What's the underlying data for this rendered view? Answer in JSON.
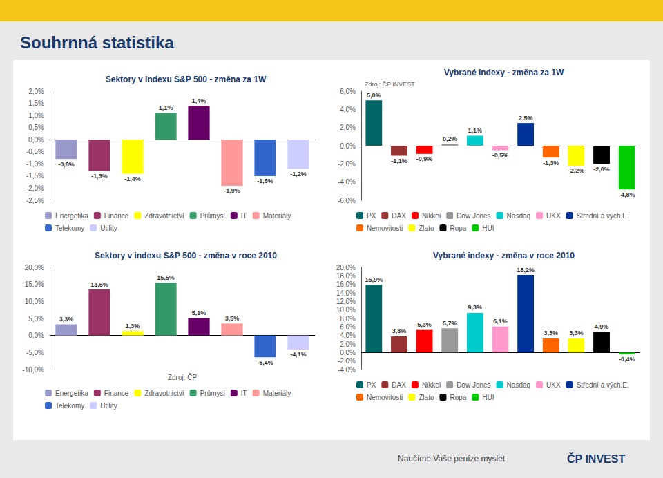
{
  "title": "Souhrnná statistika",
  "annotations": [
    "Naučíme Vaše peníze myslet",
    "ČP INVEST"
  ],
  "chart_data": [
    {
      "type": "bar",
      "title": "Sektory v indexu S&P 500 - změna za 1W",
      "categories": [
        "Energetika",
        "Finance",
        "Zdravotnictví",
        "Průmysl",
        "IT",
        "Materiály",
        "Telekomy",
        "Utility"
      ],
      "values": [
        -0.8,
        -1.3,
        -1.4,
        1.1,
        1.4,
        -1.9,
        -1.5,
        -1.2
      ],
      "value_labels": [
        "-0,8%",
        "-1,3%",
        "-1,4%",
        "1,1%",
        "1,4%",
        "-1,9%",
        "-1,5%",
        "-1,2%"
      ],
      "colors": [
        "#9999cc",
        "#993366",
        "#ffff00",
        "#339966",
        "#660066",
        "#ff9999",
        "#3366cc",
        "#ccccff"
      ],
      "ylim": [
        -2.5,
        2.0
      ],
      "yticks": [
        {
          "value": -2.5,
          "label": "-2,5%"
        },
        {
          "value": -2.0,
          "label": "-2,0%"
        },
        {
          "value": -1.5,
          "label": "-1,5%"
        },
        {
          "value": -1.0,
          "label": "-1,0%"
        },
        {
          "value": -0.5,
          "label": "-0,5%"
        },
        {
          "value": 0.0,
          "label": "0,0%"
        },
        {
          "value": 0.5,
          "label": "0,5%"
        },
        {
          "value": 1.0,
          "label": "1,0%"
        },
        {
          "value": 1.5,
          "label": "1,5%"
        },
        {
          "value": 2.0,
          "label": "2,0%"
        }
      ],
      "grid": false,
      "legend": "bottom",
      "data_labels": true,
      "tick_labels": "y"
    },
    {
      "type": "bar",
      "title": "Vybrané indexy - změna za 1W",
      "subtitle": "Zdroj: ČP INVEST",
      "categories": [
        "PX",
        "DAX",
        "Nikkei",
        "Dow Jones",
        "Nasdaq",
        "UKX",
        "Střední a vých.E.",
        "Nemovitosti",
        "Zlato",
        "Ropa",
        "HUI"
      ],
      "values": [
        5.0,
        -1.1,
        -0.9,
        0.2,
        1.1,
        -0.5,
        2.5,
        -1.3,
        -2.2,
        -2.0,
        -4.8
      ],
      "value_labels": [
        "5,0%",
        "-1,1%",
        "-0,9%",
        "0,2%",
        "1,1%",
        "-0,5%",
        "2,5%",
        "-1,3%",
        "-2,2%",
        "-2,0%",
        "-4,8%"
      ],
      "colors": [
        "#006666",
        "#993333",
        "#ff0000",
        "#999999",
        "#00cccc",
        "#ff99cc",
        "#003399",
        "#ff6600",
        "#ffff00",
        "#000000",
        "#00cc00"
      ],
      "ylim": [
        -6.0,
        6.0
      ],
      "yticks": [
        {
          "value": -6.0,
          "label": "-6,0%"
        },
        {
          "value": -4.0,
          "label": "-4,0%"
        },
        {
          "value": -2.0,
          "label": "-2,0%"
        },
        {
          "value": 0.0,
          "label": "0,0%"
        },
        {
          "value": 2.0,
          "label": "2,0%"
        },
        {
          "value": 4.0,
          "label": "4,0%"
        },
        {
          "value": 6.0,
          "label": "6,0%"
        }
      ],
      "grid": false,
      "legend": "bottom",
      "data_labels": true,
      "tick_labels": "y"
    },
    {
      "type": "bar",
      "title": "Sektory v indexu S&P 500 - změna v roce 2010",
      "xlabel": "Zdroj: ČP",
      "categories": [
        "Energetika",
        "Finance",
        "Zdravotnictví",
        "Průmysl",
        "IT",
        "Materiály",
        "Telekomy",
        "Utility"
      ],
      "values": [
        3.3,
        13.5,
        1.3,
        15.5,
        5.1,
        3.5,
        -6.4,
        -4.1
      ],
      "value_labels": [
        "3,3%",
        "13,5%",
        "1,3%",
        "15,5%",
        "5,1%",
        "3,5%",
        "-6,4%",
        "-4,1%"
      ],
      "colors": [
        "#9999cc",
        "#993366",
        "#ffff00",
        "#339966",
        "#660066",
        "#ff9999",
        "#3366cc",
        "#ccccff"
      ],
      "ylim": [
        -10.0,
        20.0
      ],
      "yticks": [
        {
          "value": -10.0,
          "label": "-10,0%"
        },
        {
          "value": -5.0,
          "label": "-5,0%"
        },
        {
          "value": 0.0,
          "label": "0,0%"
        },
        {
          "value": 5.0,
          "label": "5,0%"
        },
        {
          "value": 10.0,
          "label": "10,0%"
        },
        {
          "value": 15.0,
          "label": "15,0%"
        },
        {
          "value": 20.0,
          "label": "20,0%"
        }
      ],
      "grid": false,
      "legend": "bottom",
      "data_labels": true,
      "tick_labels": "y"
    },
    {
      "type": "bar",
      "title": "Vybrané indexy - změna v roce 2010",
      "categories": [
        "PX",
        "DAX",
        "Nikkei",
        "Dow Jones",
        "Nasdaq",
        "UKX",
        "Střední a vých.E.",
        "Nemovitosti",
        "Zlato",
        "Ropa",
        "HUI"
      ],
      "values": [
        15.9,
        3.8,
        5.3,
        5.7,
        9.3,
        6.1,
        18.2,
        3.3,
        3.3,
        4.9,
        -0.4
      ],
      "value_labels": [
        "15,9%",
        "3,8%",
        "5,3%",
        "5,7%",
        "9,3%",
        "6,1%",
        "18,2%",
        "3,3%",
        "3,3%",
        "4,9%",
        "-0,4%"
      ],
      "colors": [
        "#006666",
        "#993333",
        "#ff0000",
        "#999999",
        "#00cccc",
        "#ff99cc",
        "#003399",
        "#ff6600",
        "#ffff00",
        "#000000",
        "#00cc00"
      ],
      "ylim": [
        -4.0,
        20.0
      ],
      "yticks": [
        {
          "value": -4.0,
          "label": "-4,0%"
        },
        {
          "value": -2.0,
          "label": "-2,0%"
        },
        {
          "value": 0.0,
          "label": "0,0%"
        },
        {
          "value": 2.0,
          "label": "2,0%"
        },
        {
          "value": 4.0,
          "label": "4,0%"
        },
        {
          "value": 6.0,
          "label": "6,0%"
        },
        {
          "value": 8.0,
          "label": "8,0%"
        },
        {
          "value": 10.0,
          "label": "10,0%"
        },
        {
          "value": 12.0,
          "label": "12,0%"
        },
        {
          "value": 14.0,
          "label": "14,0%"
        },
        {
          "value": 16.0,
          "label": "16,0%"
        },
        {
          "value": 18.0,
          "label": "18,0%"
        },
        {
          "value": 20.0,
          "label": "20,0%"
        }
      ],
      "grid": false,
      "legend": "bottom",
      "data_labels": true,
      "tick_labels": "y"
    }
  ]
}
